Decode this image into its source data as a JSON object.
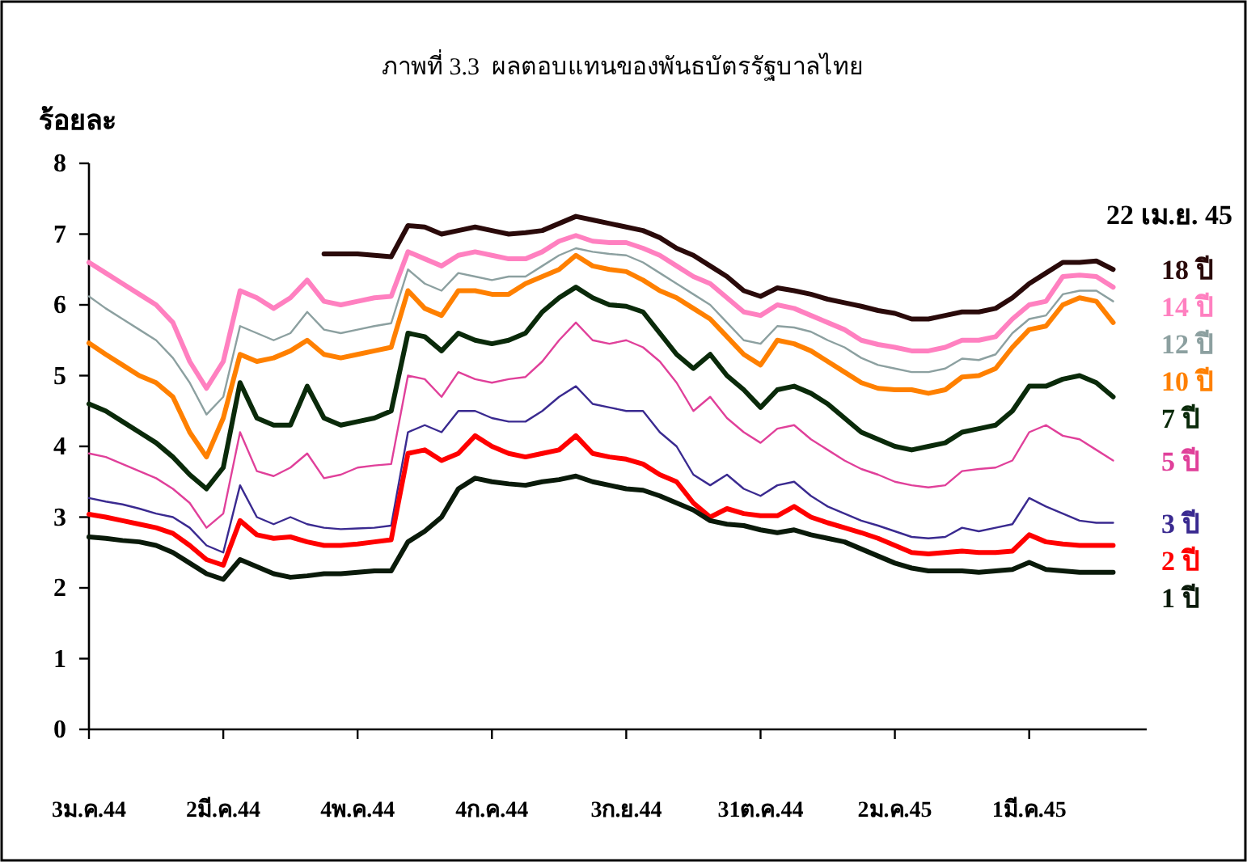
{
  "chart_data": {
    "type": "line",
    "title": "ภาพที่ 3.3  ผลตอบแทนของพันธบัตรรัฐบาลไทย",
    "ylabel": "ร้อยละ",
    "categories": [
      "3ม.ค.44",
      null,
      null,
      null,
      null,
      null,
      null,
      null,
      "2มี.ค.44",
      null,
      null,
      null,
      null,
      null,
      null,
      null,
      "4พ.ค.44",
      null,
      null,
      null,
      null,
      null,
      null,
      null,
      "4ก.ค.44",
      null,
      null,
      null,
      null,
      null,
      null,
      null,
      "3ก.ย.44",
      null,
      null,
      null,
      null,
      null,
      null,
      null,
      "31ต.ค.44",
      null,
      null,
      null,
      null,
      null,
      null,
      null,
      "2ม.ค.45",
      null,
      null,
      null,
      null,
      null,
      null,
      null,
      "1มี.ค.45",
      null,
      null,
      null,
      null,
      null
    ],
    "ylim": [
      0,
      8
    ],
    "yticks": [
      0,
      1,
      2,
      3,
      4,
      5,
      6,
      7,
      8
    ],
    "annotations": [
      "22 เม.ย. 45"
    ],
    "series": [
      {
        "name": "18 ปี",
        "color": "#2a0a0a",
        "values": [
          null,
          null,
          null,
          null,
          null,
          null,
          null,
          null,
          null,
          null,
          null,
          null,
          null,
          null,
          6.72,
          6.72,
          6.72,
          6.7,
          6.68,
          7.12,
          7.1,
          7.0,
          7.05,
          7.1,
          7.05,
          7.0,
          7.02,
          7.05,
          7.15,
          7.25,
          7.2,
          7.15,
          7.1,
          7.05,
          6.95,
          6.8,
          6.7,
          6.55,
          6.4,
          6.2,
          6.12,
          6.24,
          6.2,
          6.15,
          6.08,
          6.03,
          5.98,
          5.92,
          5.88,
          5.8,
          5.8,
          5.85,
          5.9,
          5.9,
          5.95,
          6.1,
          6.3,
          6.45,
          6.6,
          6.6,
          6.62,
          6.5
        ]
      },
      {
        "name": "14 ปี",
        "color": "#ff80c0",
        "values": [
          6.6,
          6.45,
          6.3,
          6.15,
          6.0,
          5.75,
          5.2,
          4.82,
          5.2,
          6.2,
          6.1,
          5.95,
          6.1,
          6.35,
          6.05,
          6.0,
          6.05,
          6.1,
          6.12,
          6.75,
          6.65,
          6.55,
          6.7,
          6.75,
          6.7,
          6.65,
          6.65,
          6.75,
          6.9,
          6.98,
          6.9,
          6.88,
          6.88,
          6.8,
          6.7,
          6.55,
          6.4,
          6.3,
          6.1,
          5.9,
          5.85,
          6.0,
          5.95,
          5.85,
          5.75,
          5.65,
          5.5,
          5.44,
          5.4,
          5.35,
          5.35,
          5.4,
          5.5,
          5.5,
          5.55,
          5.8,
          6.0,
          6.05,
          6.4,
          6.42,
          6.4,
          6.25
        ]
      },
      {
        "name": "12 ปี",
        "color": "#8ca0a0",
        "values": [
          6.12,
          5.95,
          5.8,
          5.65,
          5.5,
          5.25,
          4.9,
          4.45,
          4.7,
          5.7,
          5.6,
          5.5,
          5.6,
          5.9,
          5.65,
          5.6,
          5.65,
          5.7,
          5.74,
          6.5,
          6.3,
          6.2,
          6.45,
          6.4,
          6.35,
          6.4,
          6.4,
          6.55,
          6.7,
          6.8,
          6.75,
          6.72,
          6.7,
          6.6,
          6.45,
          6.3,
          6.15,
          6.0,
          5.75,
          5.5,
          5.45,
          5.7,
          5.68,
          5.62,
          5.5,
          5.4,
          5.25,
          5.15,
          5.1,
          5.05,
          5.05,
          5.1,
          5.24,
          5.22,
          5.3,
          5.6,
          5.8,
          5.85,
          6.15,
          6.2,
          6.2,
          6.05
        ]
      },
      {
        "name": "10 ปี",
        "color": "#ff8000",
        "values": [
          5.46,
          5.3,
          5.15,
          5.0,
          4.9,
          4.7,
          4.2,
          3.85,
          4.4,
          5.3,
          5.2,
          5.25,
          5.35,
          5.5,
          5.3,
          5.25,
          5.3,
          5.35,
          5.4,
          6.2,
          5.95,
          5.85,
          6.2,
          6.2,
          6.15,
          6.15,
          6.3,
          6.4,
          6.5,
          6.7,
          6.55,
          6.5,
          6.47,
          6.35,
          6.2,
          6.1,
          5.95,
          5.8,
          5.55,
          5.3,
          5.15,
          5.5,
          5.45,
          5.35,
          5.2,
          5.05,
          4.9,
          4.82,
          4.8,
          4.8,
          4.75,
          4.8,
          4.98,
          5.0,
          5.1,
          5.4,
          5.65,
          5.7,
          6.0,
          6.1,
          6.05,
          5.75
        ]
      },
      {
        "name": "7 ปี",
        "color": "#0a2a0a",
        "values": [
          4.6,
          4.5,
          4.35,
          4.2,
          4.05,
          3.85,
          3.6,
          3.4,
          3.7,
          4.9,
          4.4,
          4.3,
          4.3,
          4.85,
          4.4,
          4.3,
          4.35,
          4.4,
          4.5,
          5.6,
          5.55,
          5.35,
          5.6,
          5.5,
          5.45,
          5.5,
          5.6,
          5.9,
          6.1,
          6.25,
          6.1,
          6.0,
          5.98,
          5.9,
          5.6,
          5.3,
          5.1,
          5.3,
          5.0,
          4.8,
          4.55,
          4.8,
          4.85,
          4.75,
          4.6,
          4.4,
          4.2,
          4.1,
          4.0,
          3.95,
          4.0,
          4.05,
          4.2,
          4.25,
          4.3,
          4.5,
          4.85,
          4.85,
          4.95,
          5.0,
          4.9,
          4.7
        ]
      },
      {
        "name": "5 ปี",
        "color": "#e0409a",
        "values": [
          3.9,
          3.85,
          3.75,
          3.65,
          3.55,
          3.4,
          3.2,
          2.85,
          3.05,
          4.2,
          3.65,
          3.58,
          3.7,
          3.9,
          3.55,
          3.6,
          3.7,
          3.73,
          3.75,
          5.0,
          4.95,
          4.7,
          5.05,
          4.95,
          4.9,
          4.95,
          4.98,
          5.2,
          5.5,
          5.75,
          5.5,
          5.45,
          5.5,
          5.4,
          5.2,
          4.9,
          4.5,
          4.7,
          4.4,
          4.2,
          4.05,
          4.25,
          4.3,
          4.1,
          3.95,
          3.8,
          3.68,
          3.6,
          3.5,
          3.45,
          3.42,
          3.45,
          3.65,
          3.68,
          3.7,
          3.8,
          4.2,
          4.3,
          4.15,
          4.1,
          3.95,
          3.8
        ]
      },
      {
        "name": "3 ปี",
        "color": "#3a2a90",
        "values": [
          3.27,
          3.22,
          3.18,
          3.12,
          3.05,
          3.0,
          2.85,
          2.6,
          2.5,
          3.45,
          3.0,
          2.9,
          3.0,
          2.9,
          2.85,
          2.83,
          2.84,
          2.85,
          2.88,
          4.2,
          4.3,
          4.2,
          4.5,
          4.5,
          4.4,
          4.35,
          4.35,
          4.5,
          4.7,
          4.85,
          4.6,
          4.55,
          4.5,
          4.5,
          4.2,
          4.0,
          3.6,
          3.45,
          3.6,
          3.4,
          3.3,
          3.45,
          3.5,
          3.3,
          3.15,
          3.05,
          2.95,
          2.88,
          2.8,
          2.72,
          2.7,
          2.72,
          2.85,
          2.8,
          2.85,
          2.9,
          3.27,
          3.15,
          3.05,
          2.95,
          2.92,
          2.92
        ]
      },
      {
        "name": "2 ปี",
        "color": "#ff0000",
        "values": [
          3.04,
          3.0,
          2.95,
          2.9,
          2.85,
          2.77,
          2.6,
          2.4,
          2.32,
          2.95,
          2.75,
          2.7,
          2.72,
          2.65,
          2.6,
          2.6,
          2.62,
          2.65,
          2.68,
          3.9,
          3.95,
          3.8,
          3.9,
          4.15,
          4.0,
          3.9,
          3.85,
          3.9,
          3.95,
          4.15,
          3.9,
          3.85,
          3.82,
          3.75,
          3.6,
          3.5,
          3.2,
          3.0,
          3.12,
          3.05,
          3.02,
          3.02,
          3.15,
          3.0,
          2.92,
          2.85,
          2.78,
          2.7,
          2.6,
          2.5,
          2.48,
          2.5,
          2.52,
          2.5,
          2.5,
          2.52,
          2.75,
          2.65,
          2.62,
          2.6,
          2.6,
          2.6
        ]
      },
      {
        "name": "1 ปี",
        "color": "#0a1a0a",
        "values": [
          2.72,
          2.7,
          2.67,
          2.65,
          2.6,
          2.5,
          2.35,
          2.2,
          2.12,
          2.4,
          2.3,
          2.2,
          2.15,
          2.17,
          2.2,
          2.2,
          2.22,
          2.24,
          2.24,
          2.65,
          2.8,
          3.0,
          3.4,
          3.55,
          3.5,
          3.47,
          3.45,
          3.5,
          3.53,
          3.58,
          3.5,
          3.45,
          3.4,
          3.38,
          3.3,
          3.2,
          3.1,
          2.95,
          2.9,
          2.88,
          2.82,
          2.78,
          2.82,
          2.75,
          2.7,
          2.65,
          2.55,
          2.45,
          2.35,
          2.28,
          2.24,
          2.24,
          2.24,
          2.22,
          2.24,
          2.26,
          2.36,
          2.26,
          2.24,
          2.22,
          2.22,
          2.22
        ]
      }
    ]
  }
}
